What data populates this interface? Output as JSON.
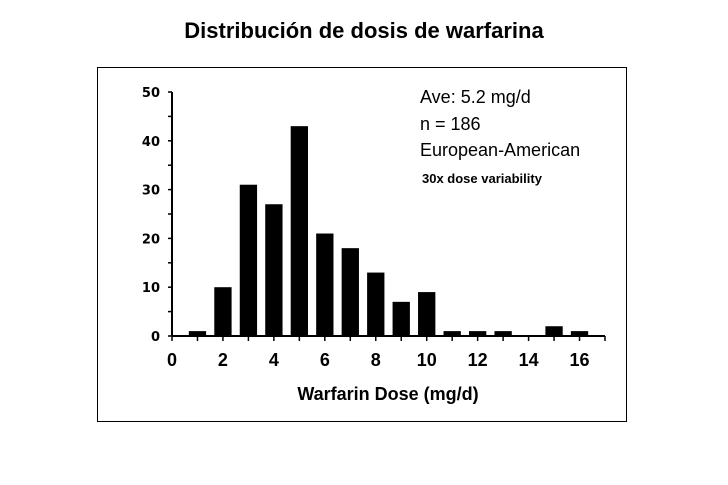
{
  "page": {
    "title": "Distribución de dosis de warfarina"
  },
  "annotations": {
    "average": "Ave:  5.2 mg/d",
    "n": "n = 186",
    "population": "European-American",
    "variability": "30x dose variability"
  },
  "colors": {
    "bar": "#000000",
    "axis": "#000000",
    "background": "#ffffff"
  },
  "chart_data": {
    "type": "bar",
    "title": "Distribución de dosis de warfarina",
    "xlabel": "Warfarin Dose (mg/d)",
    "ylabel": "",
    "x": [
      1,
      2,
      3,
      4,
      5,
      6,
      7,
      8,
      9,
      10,
      11,
      12,
      13,
      14,
      15,
      16
    ],
    "values": [
      1,
      10,
      31,
      27,
      43,
      21,
      18,
      13,
      7,
      9,
      1,
      1,
      1,
      0,
      2,
      1
    ],
    "xlim": [
      0,
      17
    ],
    "ylim": [
      0,
      50
    ],
    "x_ticks": [
      "0",
      "2",
      "4",
      "6",
      "8",
      "10",
      "12",
      "14",
      "16"
    ],
    "y_ticks": [
      "0",
      "10",
      "20",
      "30",
      "40",
      "50"
    ],
    "grid": false,
    "legend": "none"
  }
}
